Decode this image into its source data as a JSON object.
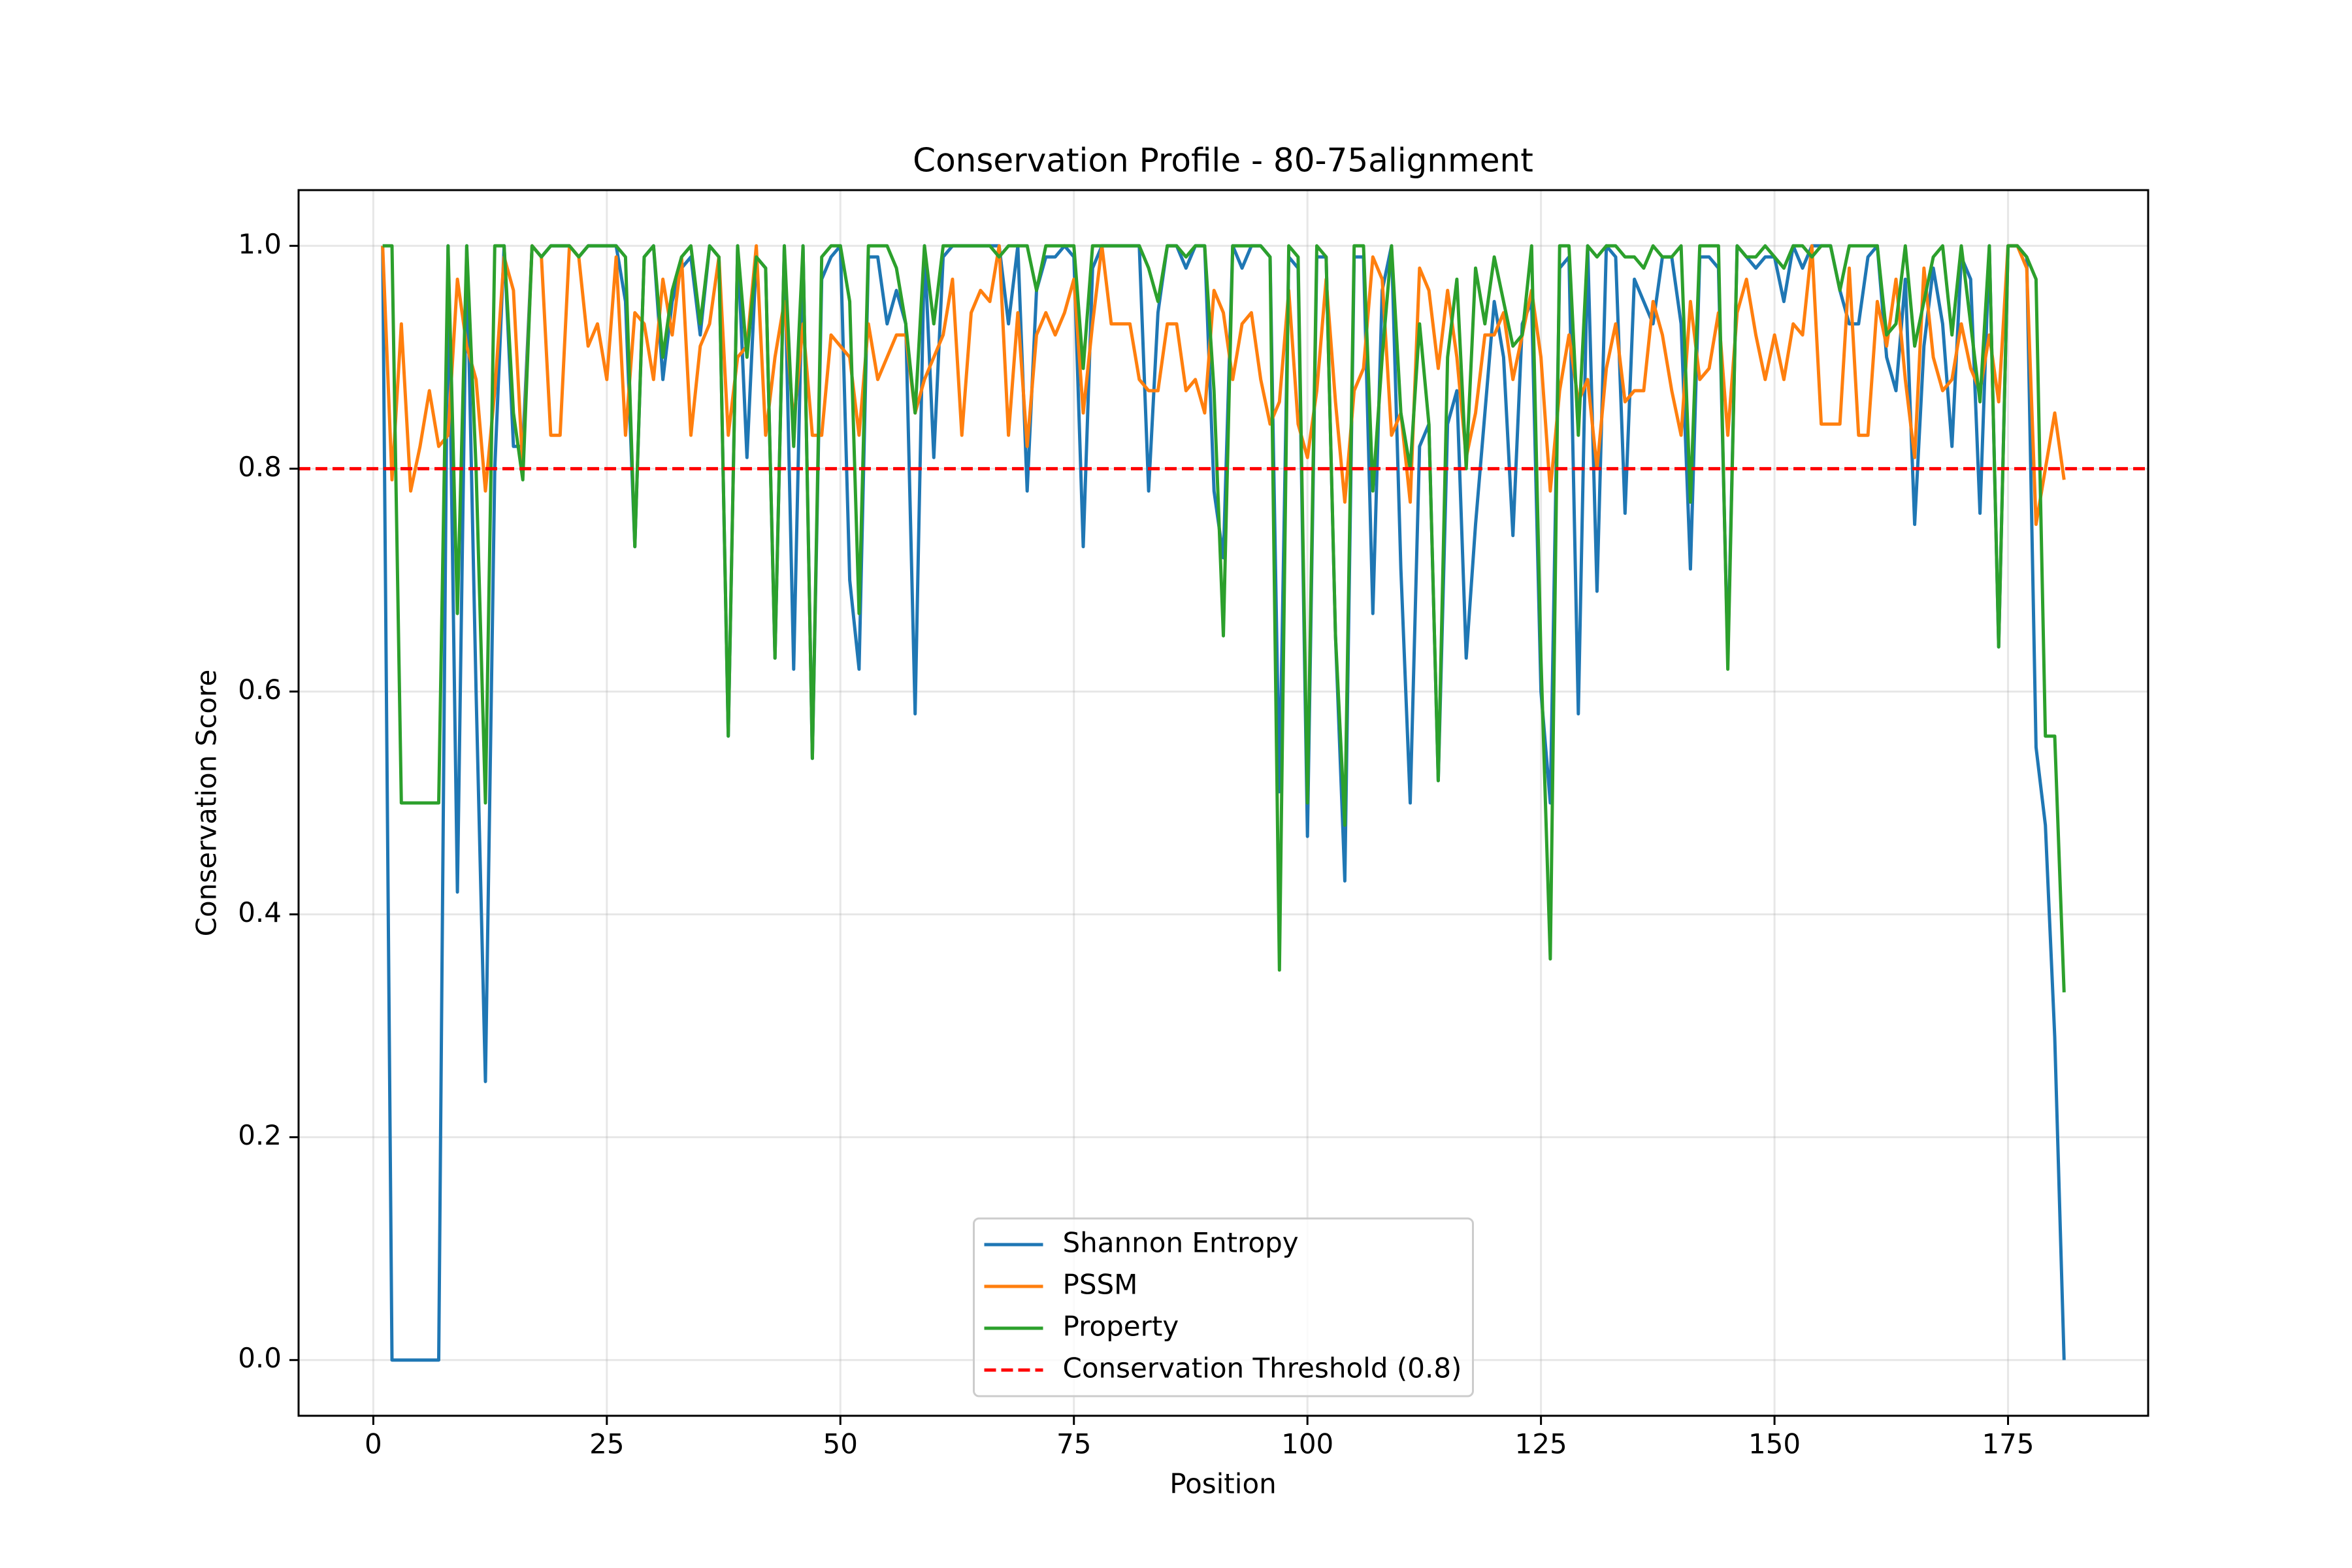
{
  "chart_data": {
    "type": "line",
    "title": "Conservation Profile - 80-75alignment",
    "xlabel": "Position",
    "ylabel": "Conservation Score",
    "x": [
      1,
      2,
      3,
      4,
      5,
      6,
      7,
      8,
      9,
      10,
      11,
      12,
      13,
      14,
      15,
      16,
      17,
      18,
      19,
      20,
      21,
      22,
      23,
      24,
      25,
      26,
      27,
      28,
      29,
      30,
      31,
      32,
      33,
      34,
      35,
      36,
      37,
      38,
      39,
      40,
      41,
      42,
      43,
      44,
      45,
      46,
      47,
      48,
      49,
      50,
      51,
      52,
      53,
      54,
      55,
      56,
      57,
      58,
      59,
      60,
      61,
      62,
      63,
      64,
      65,
      66,
      67,
      68,
      69,
      70,
      71,
      72,
      73,
      74,
      75,
      76,
      77,
      78,
      79,
      80,
      81,
      82,
      83,
      84,
      85,
      86,
      87,
      88,
      89,
      90,
      91,
      92,
      93,
      94,
      95,
      96,
      97,
      98,
      99,
      100,
      101,
      102,
      103,
      104,
      105,
      106,
      107,
      108,
      109,
      110,
      111,
      112,
      113,
      114,
      115,
      116,
      117,
      118,
      119,
      120,
      121,
      122,
      123,
      124,
      125,
      126,
      127,
      128,
      129,
      130,
      131,
      132,
      133,
      134,
      135,
      136,
      137,
      138,
      139,
      140,
      141,
      142,
      143,
      144,
      145,
      146,
      147,
      148,
      149,
      150,
      151,
      152,
      153,
      154,
      155,
      156,
      157,
      158,
      159,
      160,
      161,
      162,
      163,
      164,
      165,
      166,
      167,
      168,
      169,
      170,
      171,
      172,
      173,
      174,
      175,
      176,
      177,
      178,
      179,
      180,
      181
    ],
    "series": [
      {
        "name": "Shannon Entropy",
        "color": "#1f77b4",
        "values": [
          1.0,
          0,
          0,
          0,
          0,
          0,
          0,
          1.0,
          0.42,
          1.0,
          0.6,
          0.25,
          0.8,
          1.0,
          0.82,
          0.82,
          1.0,
          0.99,
          1.0,
          1.0,
          1.0,
          0.99,
          1.0,
          1.0,
          1.0,
          1.0,
          0.95,
          0.73,
          0.99,
          1.0,
          0.88,
          0.95,
          0.98,
          0.99,
          0.92,
          1.0,
          0.99,
          0.56,
          1.0,
          0.81,
          0.99,
          0.98,
          0.63,
          1.0,
          0.62,
          1.0,
          0.54,
          0.97,
          0.99,
          1.0,
          0.7,
          0.62,
          0.99,
          0.99,
          0.93,
          0.96,
          0.93,
          0.58,
          1.0,
          0.81,
          0.99,
          1.0,
          1.0,
          1.0,
          1.0,
          1.0,
          1.0,
          0.93,
          1.0,
          0.78,
          0.96,
          0.99,
          0.99,
          1.0,
          0.99,
          0.73,
          0.98,
          1.0,
          1.0,
          1.0,
          1.0,
          1.0,
          0.78,
          0.94,
          1.0,
          1.0,
          0.98,
          1.0,
          1.0,
          0.78,
          0.72,
          1.0,
          0.98,
          1.0,
          1.0,
          0.99,
          0.51,
          0.99,
          0.98,
          0.47,
          0.99,
          0.99,
          0.65,
          0.43,
          0.99,
          0.99,
          0.67,
          0.96,
          1.0,
          0.71,
          0.5,
          0.82,
          0.84,
          0.52,
          0.84,
          0.87,
          0.63,
          0.75,
          0.85,
          0.95,
          0.9,
          0.74,
          0.93,
          0.95,
          0.6,
          0.5,
          0.98,
          0.99,
          0.58,
          1.0,
          0.69,
          1.0,
          0.99,
          0.76,
          0.97,
          0.95,
          0.93,
          0.99,
          0.99,
          0.93,
          0.71,
          0.99,
          0.99,
          0.98,
          0.63,
          1.0,
          0.99,
          0.98,
          0.99,
          0.99,
          0.95,
          1.0,
          0.98,
          1.0,
          1.0,
          1.0,
          0.96,
          0.93,
          0.93,
          0.99,
          1.0,
          0.9,
          0.87,
          0.97,
          0.75,
          0.91,
          0.98,
          0.93,
          0.82,
          0.99,
          0.97,
          0.76,
          1.0,
          0.64,
          1.0,
          1.0,
          0.99,
          0.55,
          0.48,
          0.29,
          0.0
        ]
      },
      {
        "name": "PSSM",
        "color": "#ff7f0e",
        "values": [
          1.0,
          0.79,
          0.93,
          0.78,
          0.82,
          0.87,
          0.82,
          0.83,
          0.97,
          0.91,
          0.88,
          0.78,
          0.87,
          0.99,
          0.96,
          0.8,
          1.0,
          0.99,
          0.83,
          0.83,
          1.0,
          0.99,
          0.91,
          0.93,
          0.88,
          0.99,
          0.83,
          0.94,
          0.93,
          0.88,
          0.97,
          0.92,
          0.99,
          0.83,
          0.91,
          0.93,
          0.99,
          0.83,
          0.9,
          0.91,
          1.0,
          0.83,
          0.9,
          0.95,
          0.84,
          0.93,
          0.83,
          0.83,
          0.92,
          0.91,
          0.9,
          0.83,
          0.93,
          0.88,
          0.9,
          0.92,
          0.92,
          0.85,
          0.88,
          0.9,
          0.92,
          0.97,
          0.83,
          0.94,
          0.96,
          0.95,
          1.0,
          0.83,
          0.94,
          0.82,
          0.92,
          0.94,
          0.92,
          0.94,
          0.97,
          0.85,
          0.93,
          1.0,
          0.93,
          0.93,
          0.93,
          0.88,
          0.87,
          0.87,
          0.93,
          0.93,
          0.87,
          0.88,
          0.85,
          0.96,
          0.94,
          0.88,
          0.93,
          0.94,
          0.88,
          0.84,
          0.86,
          0.96,
          0.84,
          0.81,
          0.87,
          0.97,
          0.86,
          0.77,
          0.87,
          0.89,
          0.99,
          0.97,
          0.83,
          0.85,
          0.77,
          0.98,
          0.96,
          0.89,
          0.96,
          0.9,
          0.81,
          0.85,
          0.92,
          0.92,
          0.94,
          0.88,
          0.92,
          0.96,
          0.9,
          0.78,
          0.87,
          0.92,
          0.86,
          0.88,
          0.8,
          0.89,
          0.93,
          0.86,
          0.87,
          0.87,
          0.95,
          0.92,
          0.87,
          0.83,
          0.95,
          0.88,
          0.89,
          0.94,
          0.83,
          0.94,
          0.97,
          0.92,
          0.88,
          0.92,
          0.88,
          0.93,
          0.92,
          1.0,
          0.84,
          0.84,
          0.84,
          0.98,
          0.83,
          0.83,
          0.95,
          0.91,
          0.97,
          0.88,
          0.81,
          0.98,
          0.9,
          0.87,
          0.88,
          0.93,
          0.89,
          0.87,
          0.92,
          0.86,
          1.0,
          1.0,
          0.98,
          0.75,
          0.8,
          0.85,
          0.79
        ]
      },
      {
        "name": "Property",
        "color": "#2ca02c",
        "values": [
          1.0,
          1.0,
          0.5,
          0.5,
          0.5,
          0.5,
          0.5,
          1.0,
          0.67,
          1.0,
          0.8,
          0.5,
          1.0,
          1.0,
          0.85,
          0.79,
          1.0,
          0.99,
          1.0,
          1.0,
          1.0,
          0.99,
          1.0,
          1.0,
          1.0,
          1.0,
          0.99,
          0.73,
          0.99,
          1.0,
          0.9,
          0.96,
          0.99,
          1.0,
          0.93,
          1.0,
          0.99,
          0.56,
          1.0,
          0.9,
          0.99,
          0.98,
          0.63,
          1.0,
          0.82,
          1.0,
          0.54,
          0.99,
          1.0,
          1.0,
          0.95,
          0.67,
          1.0,
          1.0,
          1.0,
          0.98,
          0.93,
          0.85,
          1.0,
          0.93,
          1.0,
          1.0,
          1.0,
          1.0,
          1.0,
          1.0,
          0.99,
          1.0,
          1.0,
          1.0,
          0.96,
          1.0,
          1.0,
          1.0,
          1.0,
          0.89,
          1.0,
          1.0,
          1.0,
          1.0,
          1.0,
          1.0,
          0.98,
          0.95,
          1.0,
          1.0,
          0.99,
          1.0,
          1.0,
          0.87,
          0.65,
          1.0,
          1.0,
          1.0,
          1.0,
          0.99,
          0.35,
          1.0,
          0.99,
          0.5,
          1.0,
          0.99,
          0.65,
          0.48,
          1.0,
          1.0,
          0.78,
          0.9,
          1.0,
          0.85,
          0.8,
          0.93,
          0.84,
          0.52,
          0.9,
          0.97,
          0.8,
          0.98,
          0.93,
          0.99,
          0.95,
          0.91,
          0.92,
          1.0,
          0.63,
          0.36,
          1.0,
          1.0,
          0.83,
          1.0,
          0.99,
          1.0,
          1.0,
          0.99,
          0.99,
          0.98,
          1.0,
          0.99,
          0.99,
          1.0,
          0.77,
          1.0,
          1.0,
          1.0,
          0.62,
          1.0,
          0.99,
          0.99,
          1.0,
          0.99,
          0.98,
          1.0,
          1.0,
          0.99,
          1.0,
          1.0,
          0.96,
          1.0,
          1.0,
          1.0,
          1.0,
          0.92,
          0.93,
          1.0,
          0.91,
          0.95,
          0.99,
          1.0,
          0.92,
          1.0,
          0.93,
          0.86,
          1.0,
          0.64,
          1.0,
          1.0,
          0.99,
          0.97,
          0.56,
          0.56,
          0.33
        ]
      }
    ],
    "threshold": {
      "value": 0.8,
      "label": "Conservation Threshold (0.8)",
      "color": "#ff0000"
    },
    "xlim": [
      -8,
      190
    ],
    "ylim": [
      -0.05,
      1.05
    ],
    "xticks": [
      0,
      25,
      50,
      75,
      100,
      125,
      150,
      175
    ],
    "yticks": [
      {
        "value": 0,
        "label": "0.0"
      },
      0.2,
      0.4,
      0.6,
      0.8,
      {
        "value": 1,
        "label": "1.0"
      }
    ],
    "grid": true,
    "legend": "lower center"
  }
}
